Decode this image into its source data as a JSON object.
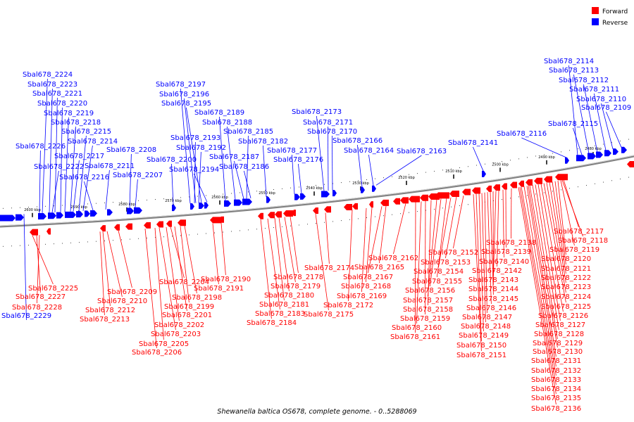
{
  "legend": {
    "forward_label": "Forward",
    "reverse_label": "Reverse",
    "forward_color": "#ff0000",
    "reverse_color": "#0000ff"
  },
  "caption": "Shewanella baltica OS678, complete genome. - 0..5288069",
  "scale_ticks": [
    "2600 kbp",
    "2590 kbp",
    "2580 kbp",
    "2570 kbp",
    "2560 kbp",
    "2550 kbp",
    "2540 kbp",
    "2530 kbp",
    "2520 kbp",
    "2510 kbp",
    "2500 kbp",
    "2490 kbp",
    "2480 kbp"
  ],
  "reverse_genes": [
    "Sbal678_2224",
    "Sbal678_2223",
    "Sbal678_2221",
    "Sbal678_2220",
    "Sbal678_2219",
    "Sbal678_2218",
    "Sbal678_2215",
    "Sbal678_2214",
    "Sbal678_2226",
    "Sbal678_2217",
    "Sbal678_2222",
    "Sbal678_2211",
    "Sbal678_2216",
    "Sbal678_2208",
    "Sbal678_2207",
    "Sbal678_2197",
    "Sbal678_2196",
    "Sbal678_2195",
    "Sbal678_2189",
    "Sbal678_2188",
    "Sbal678_2185",
    "Sbal678_2193",
    "Sbal678_2192",
    "Sbal678_2200",
    "Sbal678_2194",
    "Sbal678_2187",
    "Sbal678_2186",
    "Sbal678_2182",
    "Sbal678_2177",
    "Sbal678_2176",
    "Sbal678_2173",
    "Sbal678_2171",
    "Sbal678_2170",
    "Sbal678_2166",
    "Sbal678_2164",
    "Sbal678_2163",
    "Sbal678_2141",
    "Sbal678_2116",
    "Sbal678_2114",
    "Sbal678_2113",
    "Sbal678_2112",
    "Sbal678_2111",
    "Sbal678_2110",
    "Sbal678_2109",
    "Sbal678_2115",
    "Sbal678_2229"
  ],
  "forward_genes": [
    "Sbal678_2117",
    "Sbal678_2118",
    "Sbal678_2119",
    "Sbal678_2120",
    "Sbal678_2121",
    "Sbal678_2122",
    "Sbal678_2123",
    "Sbal678_2124",
    "Sbal678_2125",
    "Sbal678_2126",
    "Sbal678_2127",
    "Sbal678_2128",
    "Sbal678_2129",
    "Sbal678_2130",
    "Sbal678_2131",
    "Sbal678_2132",
    "Sbal678_2133",
    "Sbal678_2134",
    "Sbal678_2135",
    "Sbal678_2136",
    "Sbal678_2138",
    "Sbal678_2139",
    "Sbal678_2140",
    "Sbal678_2142",
    "Sbal678_2143",
    "Sbal678_2144",
    "Sbal678_2145",
    "Sbal678_2146",
    "Sbal678_2147",
    "Sbal678_2148",
    "Sbal678_2149",
    "Sbal678_2150",
    "Sbal678_2151",
    "Sbal678_2152",
    "Sbal678_2153",
    "Sbal678_2154",
    "Sbal678_2155",
    "Sbal678_2156",
    "Sbal678_2157",
    "Sbal678_2158",
    "Sbal678_2159",
    "Sbal678_2160",
    "Sbal678_2161",
    "Sbal678_2162",
    "Sbal678_2165",
    "Sbal678_2167",
    "Sbal678_2168",
    "Sbal678_2169",
    "Sbal678_2172",
    "Sbal678_2174",
    "Sbal678_2175",
    "Sbal678_2178",
    "Sbal678_2179",
    "Sbal678_2180",
    "Sbal678_2181",
    "Sbal678_2183",
    "Sbal678_2184",
    "Sbal678_2190",
    "Sbal678_2191",
    "Sbal678_2198",
    "Sbal678_2199",
    "Sbal678_2201",
    "Sbal678_2202",
    "Sbal678_2203",
    "Sbal678_2204",
    "Sbal678_2205",
    "Sbal678_2206",
    "Sbal678_2209",
    "Sbal678_2210",
    "Sbal678_2212",
    "Sbal678_2213",
    "Sbal678_2225",
    "Sbal678_2227",
    "Sbal678_2228"
  ]
}
